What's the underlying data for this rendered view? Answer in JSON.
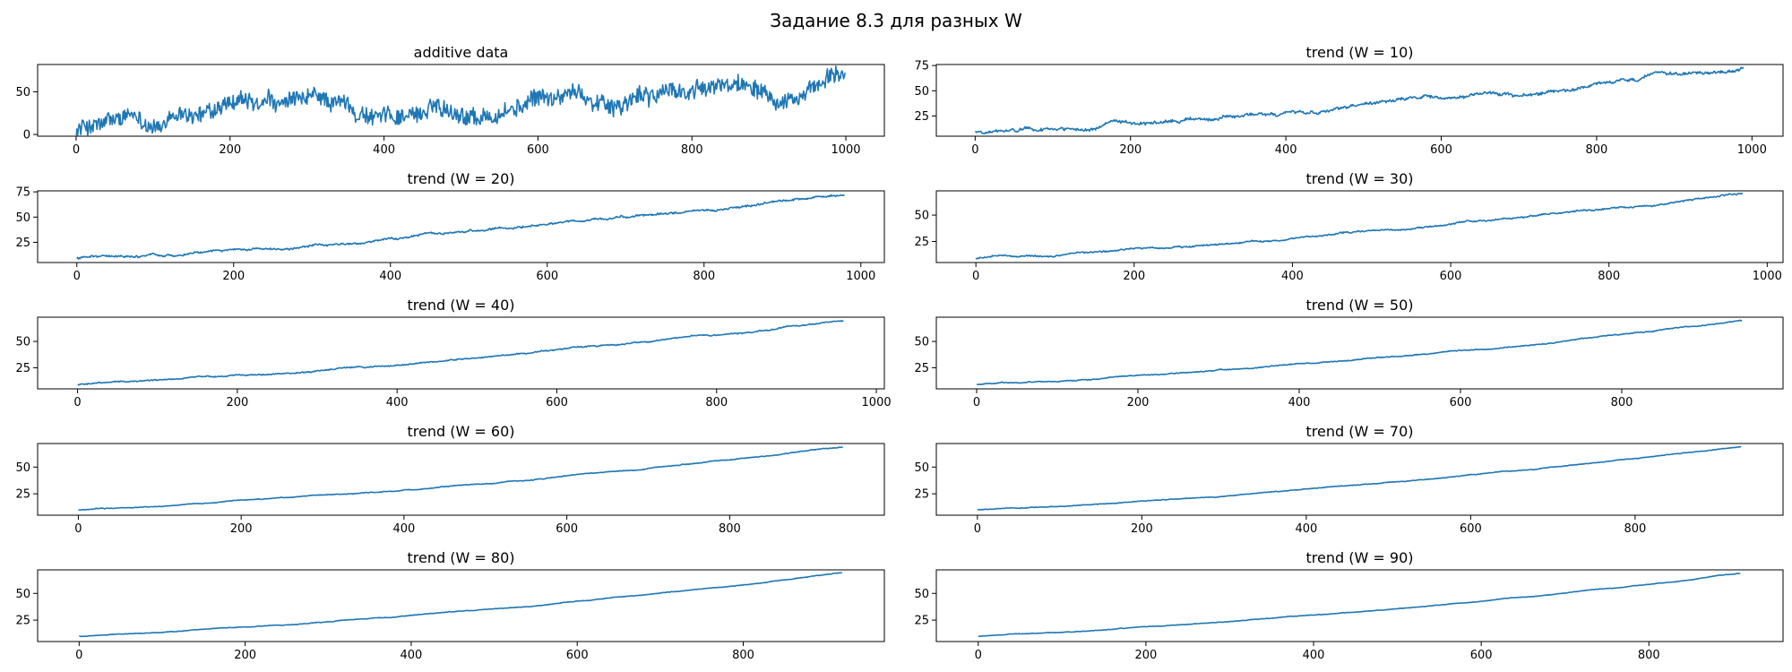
{
  "figure": {
    "suptitle": "Задание 8.3 для разных W",
    "line_color": "#1f77b4"
  },
  "chart_data": [
    {
      "type": "line",
      "title": "additive data",
      "xlabel": "",
      "ylabel": "",
      "xlim": [
        -50,
        1050
      ],
      "ylim": [
        -2,
        82
      ],
      "xticks": [
        0,
        200,
        400,
        600,
        800,
        1000
      ],
      "yticks": [
        0,
        50
      ],
      "grid": false,
      "series": [
        {
          "n_points": 1000,
          "trend_start": 6,
          "trend_end": 71,
          "noise_amplitude": 9
        }
      ]
    },
    {
      "type": "line",
      "title": "trend (W = 10)",
      "xlabel": "",
      "ylabel": "",
      "xlim": [
        -50,
        1040
      ],
      "ylim": [
        5,
        76
      ],
      "xticks": [
        0,
        200,
        400,
        600,
        800,
        1000
      ],
      "yticks": [
        25,
        50,
        75
      ],
      "grid": false,
      "series": [
        {
          "n_points": 990,
          "trend_start": 9,
          "trend_end": 72,
          "noise_amplitude": 2.2
        }
      ]
    },
    {
      "type": "line",
      "title": "trend (W = 20)",
      "xlabel": "",
      "ylabel": "",
      "xlim": [
        -50,
        1030
      ],
      "ylim": [
        5,
        76
      ],
      "xticks": [
        0,
        200,
        400,
        600,
        800,
        1000
      ],
      "yticks": [
        25,
        50,
        75
      ],
      "grid": false,
      "series": [
        {
          "n_points": 980,
          "trend_start": 9,
          "trend_end": 72,
          "noise_amplitude": 1.4
        }
      ]
    },
    {
      "type": "line",
      "title": "trend (W = 30)",
      "xlabel": "",
      "ylabel": "",
      "xlim": [
        -50,
        1020
      ],
      "ylim": [
        5,
        73
      ],
      "xticks": [
        0,
        200,
        400,
        600,
        800,
        1000
      ],
      "yticks": [
        25,
        50
      ],
      "grid": false,
      "series": [
        {
          "n_points": 970,
          "trend_start": 9,
          "trend_end": 71,
          "noise_amplitude": 1.0
        }
      ]
    },
    {
      "type": "line",
      "title": "trend (W = 40)",
      "xlabel": "",
      "ylabel": "",
      "xlim": [
        -50,
        1010
      ],
      "ylim": [
        5,
        73
      ],
      "xticks": [
        0,
        200,
        400,
        600,
        800,
        1000
      ],
      "yticks": [
        25,
        50
      ],
      "grid": false,
      "series": [
        {
          "n_points": 960,
          "trend_start": 9,
          "trend_end": 70,
          "noise_amplitude": 0.8
        }
      ]
    },
    {
      "type": "line",
      "title": "trend (W = 50)",
      "xlabel": "",
      "ylabel": "",
      "xlim": [
        -50,
        1000
      ],
      "ylim": [
        5,
        73
      ],
      "xticks": [
        0,
        200,
        400,
        600,
        800
      ],
      "yticks": [
        25,
        50
      ],
      "grid": false,
      "series": [
        {
          "n_points": 950,
          "trend_start": 9,
          "trend_end": 70,
          "noise_amplitude": 0.65
        }
      ]
    },
    {
      "type": "line",
      "title": "trend (W = 60)",
      "xlabel": "",
      "ylabel": "",
      "xlim": [
        -50,
        990
      ],
      "ylim": [
        5,
        72
      ],
      "xticks": [
        0,
        200,
        400,
        600,
        800
      ],
      "yticks": [
        25,
        50
      ],
      "grid": false,
      "series": [
        {
          "n_points": 940,
          "trend_start": 10,
          "trend_end": 69,
          "noise_amplitude": 0.5
        }
      ]
    },
    {
      "type": "line",
      "title": "trend (W = 70)",
      "xlabel": "",
      "ylabel": "",
      "xlim": [
        -50,
        980
      ],
      "ylim": [
        5,
        72
      ],
      "xticks": [
        0,
        200,
        400,
        600,
        800
      ],
      "yticks": [
        25,
        50
      ],
      "grid": false,
      "series": [
        {
          "n_points": 930,
          "trend_start": 10,
          "trend_end": 69,
          "noise_amplitude": 0.45
        }
      ]
    },
    {
      "type": "line",
      "title": "trend (W = 80)",
      "xlabel": "",
      "ylabel": "",
      "xlim": [
        -50,
        970
      ],
      "ylim": [
        5,
        72
      ],
      "xticks": [
        0,
        200,
        400,
        600,
        800
      ],
      "yticks": [
        25,
        50
      ],
      "grid": false,
      "series": [
        {
          "n_points": 920,
          "trend_start": 10,
          "trend_end": 69,
          "noise_amplitude": 0.4
        }
      ]
    },
    {
      "type": "line",
      "title": "trend (W = 90)",
      "xlabel": "",
      "ylabel": "",
      "xlim": [
        -50,
        960
      ],
      "ylim": [
        5,
        72
      ],
      "xticks": [
        0,
        200,
        400,
        600,
        800
      ],
      "yticks": [
        25,
        50
      ],
      "grid": false,
      "series": [
        {
          "n_points": 910,
          "trend_start": 10,
          "trend_end": 69,
          "noise_amplitude": 0.35
        }
      ]
    }
  ]
}
